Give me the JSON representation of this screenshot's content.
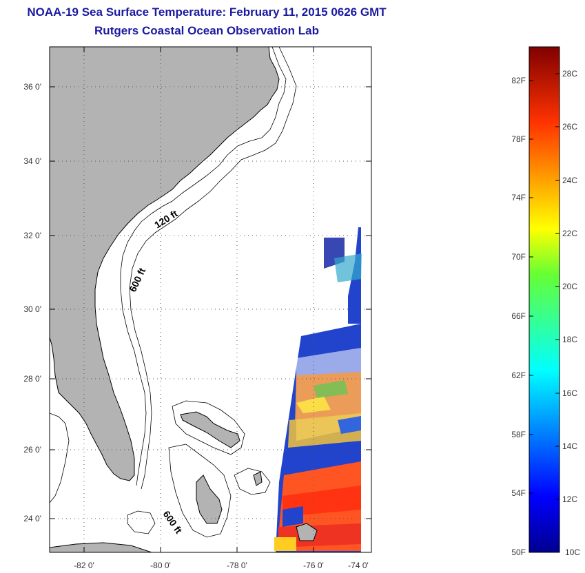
{
  "header": {
    "title": "NOAA-19 Sea Surface Temperature:  February 11, 2015 0626 GMT",
    "subtitle": "Rutgers Coastal Ocean Observation Lab"
  },
  "map": {
    "lat_labels": [
      "36 0'",
      "34 0'",
      "32 0'",
      "30 0'",
      "28 0'",
      "26 0'",
      "24 0'"
    ],
    "lon_labels": [
      "-82 0'",
      "-80 0'",
      "-78 0'",
      "-76 0'",
      "-74 0'"
    ],
    "isobath_labels": [
      "120 ft",
      "600 ft",
      "600 ft"
    ],
    "colors": {
      "land": "#b3b3b3",
      "ocean": "#ffffff",
      "grid": "#555555"
    }
  },
  "colorbar": {
    "fahrenheit_labels": [
      "82F",
      "78F",
      "74F",
      "70F",
      "66F",
      "62F",
      "58F",
      "54F",
      "50F"
    ],
    "celsius_labels": [
      "28C",
      "26C",
      "24C",
      "22C",
      "20C",
      "18C",
      "16C",
      "14C",
      "12C",
      "10C"
    ]
  }
}
